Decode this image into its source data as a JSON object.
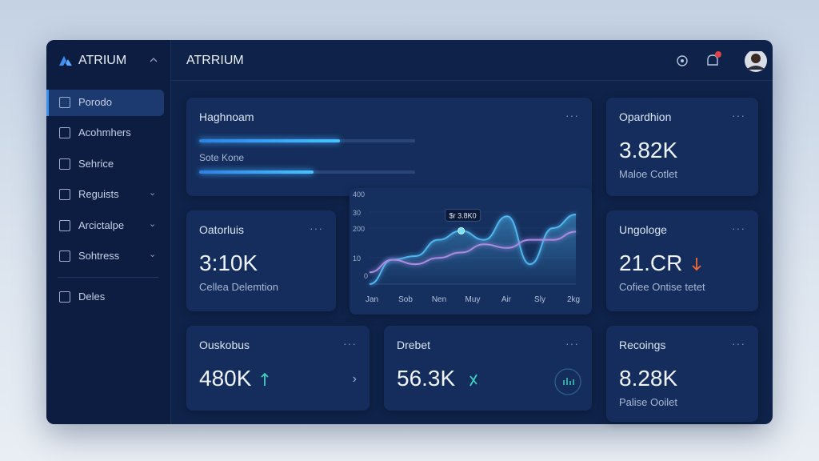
{
  "sidebar": {
    "brand": "ATRIUM",
    "nav": [
      "Porodo",
      "Acohmhers",
      "Sehrice",
      "Reguists",
      "Arcictalpe",
      "Sohtress",
      "Deles"
    ]
  },
  "header": {
    "title": "ATRRIUM"
  },
  "progress_card": {
    "title": "Haghnoam",
    "label": "Sote Kone",
    "values": [
      65,
      53
    ]
  },
  "chart": {
    "y_labels": [
      "400",
      "30",
      "200",
      "10",
      "0"
    ],
    "x_labels": [
      "Jan",
      "Sob",
      "Nen",
      "Muy",
      "Air",
      "Sly",
      "2kg"
    ],
    "annotation": "$r 3.8K0",
    "ylim": [
      0,
      100
    ],
    "series": [
      {
        "color": "#4fb6f0",
        "values": [
          0,
          27,
          31,
          49,
          59,
          49,
          75,
          22,
          62,
          77
        ]
      },
      {
        "color": "#a98be0",
        "values": [
          13,
          27,
          22,
          29,
          35,
          44,
          40,
          49,
          49,
          58
        ]
      }
    ]
  },
  "cards": [
    {
      "title": "Opardhion",
      "value": "3.82K",
      "caption": "Maloe Cotlet"
    },
    {
      "title": "Oatorluis",
      "value": "3:10K",
      "caption": "Cellea Delemtion"
    },
    {
      "title": "Ungologe",
      "value": "21.CR",
      "caption": "Cofiee Ontise tetet"
    },
    {
      "title": "Ouskobus",
      "value": "480K"
    },
    {
      "title": "Drebet",
      "value": "56.3K"
    },
    {
      "title": "Recoings",
      "value": "8.28K",
      "caption": "Palise Ooilet"
    }
  ]
}
